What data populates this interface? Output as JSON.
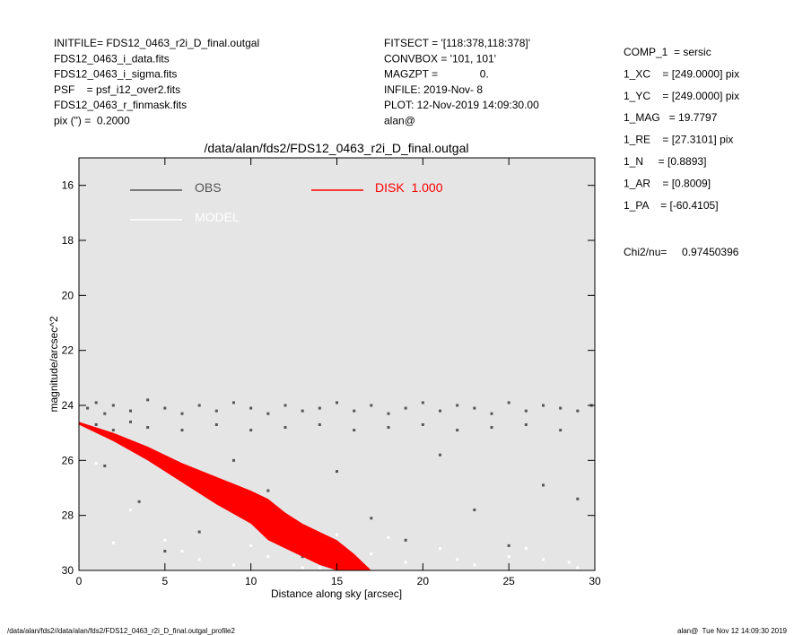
{
  "header": {
    "left": [
      "INITFILE= FDS12_0463_r2i_D_final.outgal",
      "FDS12_0463_i_data.fits",
      "FDS12_0463_i_sigma.fits",
      "PSF    = psf_i12_over2.fits",
      "FDS12_0463_r_finmask.fits",
      "pix (\") =  0.2000"
    ],
    "middle": [
      "FITSECT = '[118:378,118:378]'",
      "CONVBOX = '101, 101'",
      "MAGZPT =              0.",
      "INFILE: 2019-Nov- 8",
      "PLOT: 12-Nov-2019 14:09:30.00",
      "alan@"
    ],
    "right": [
      "COMP_1  = sersic",
      "1_XC    = [249.0000] pix",
      "1_YC    = [249.0000] pix",
      "1_MAG   = 19.7797",
      "1_RE    = [27.3101] pix",
      "1_N     = [0.8893]",
      "1_AR    = [0.8009]",
      "1_PA    = [-60.4105]"
    ],
    "chi2": "Chi2/nu=     0.97450396"
  },
  "footer": {
    "left": "/data/alan/fds2//data/alan/fds2/FDS12_0463_r2i_D_final.outgal_profile2",
    "right": "alan@  Tue Nov 12 14:09:30 2019"
  },
  "chart_data": {
    "type": "scatter",
    "title": "/data/alan/fds2/FDS12_0463_r2i_D_final.outgal",
    "x_label": "Distance along sky [arcsec]",
    "y_label": "magnitude/arcsec^2",
    "xlim": [
      0,
      30
    ],
    "ylim": [
      30,
      15
    ],
    "xticks": [
      0,
      5,
      10,
      15,
      20,
      25,
      30
    ],
    "yticks": [
      16,
      18,
      20,
      22,
      24,
      26,
      28,
      30
    ],
    "background": "#e5e5e5",
    "series": [
      {
        "name": "OBS",
        "color": "#555555",
        "x": [
          0.5,
          1,
          1.5,
          2,
          3,
          4,
          5,
          6,
          7,
          8,
          9,
          10,
          11,
          12,
          13,
          14,
          15,
          16,
          17,
          18,
          19,
          20,
          21,
          22,
          23,
          24,
          25,
          26,
          27,
          28,
          29,
          29.8,
          1,
          2,
          3,
          4,
          6,
          8,
          10,
          12,
          14,
          16,
          18,
          20,
          22,
          24,
          26,
          28,
          1.5,
          3.5,
          7,
          11,
          15,
          19,
          23,
          27,
          5,
          9,
          13,
          17,
          21,
          25,
          29
        ],
        "values": [
          24.1,
          23.9,
          24.3,
          24.0,
          24.2,
          23.8,
          24.1,
          24.3,
          24.0,
          24.2,
          23.9,
          24.1,
          24.3,
          24.0,
          24.2,
          24.1,
          23.9,
          24.2,
          24.0,
          24.3,
          24.1,
          23.9,
          24.2,
          24.0,
          24.1,
          24.3,
          23.9,
          24.2,
          24.0,
          24.1,
          24.2,
          24.0,
          24.7,
          24.9,
          24.6,
          24.8,
          24.9,
          24.7,
          24.9,
          24.8,
          24.7,
          24.9,
          24.8,
          24.7,
          24.9,
          24.8,
          24.7,
          24.9,
          26.2,
          27.5,
          28.6,
          27.1,
          26.4,
          28.9,
          27.8,
          26.9,
          29.3,
          26.0,
          29.5,
          28.1,
          25.8,
          29.1,
          27.4
        ]
      },
      {
        "name": "MODEL",
        "color": "#ffffff",
        "x": [
          1,
          3,
          5,
          7,
          9,
          11,
          13,
          15,
          17,
          19,
          21,
          23,
          25,
          27,
          29,
          2,
          6,
          10,
          14,
          18,
          22,
          26,
          28.5
        ],
        "values": [
          26.1,
          27.8,
          28.9,
          29.6,
          29.8,
          29.5,
          29.9,
          28.7,
          29.4,
          29.7,
          29.2,
          29.8,
          29.5,
          29.6,
          29.9,
          29.0,
          29.3,
          29.1,
          29.9,
          28.8,
          29.6,
          29.2,
          29.7
        ]
      },
      {
        "name": "DISK  1.000",
        "color": "#ff0000",
        "x": [
          0,
          2,
          4,
          6,
          8,
          10,
          11,
          12,
          13,
          14,
          15,
          16,
          17
        ],
        "values": [
          24.6,
          25.0,
          25.5,
          26.1,
          26.6,
          27.1,
          27.4,
          27.9,
          28.3,
          28.6,
          28.9,
          29.4,
          30.0
        ],
        "values_faint": [
          24.7,
          25.3,
          26.0,
          26.8,
          27.6,
          28.3,
          28.9,
          29.2,
          29.5,
          29.8,
          30.0,
          30.0,
          30.0
        ]
      }
    ]
  }
}
